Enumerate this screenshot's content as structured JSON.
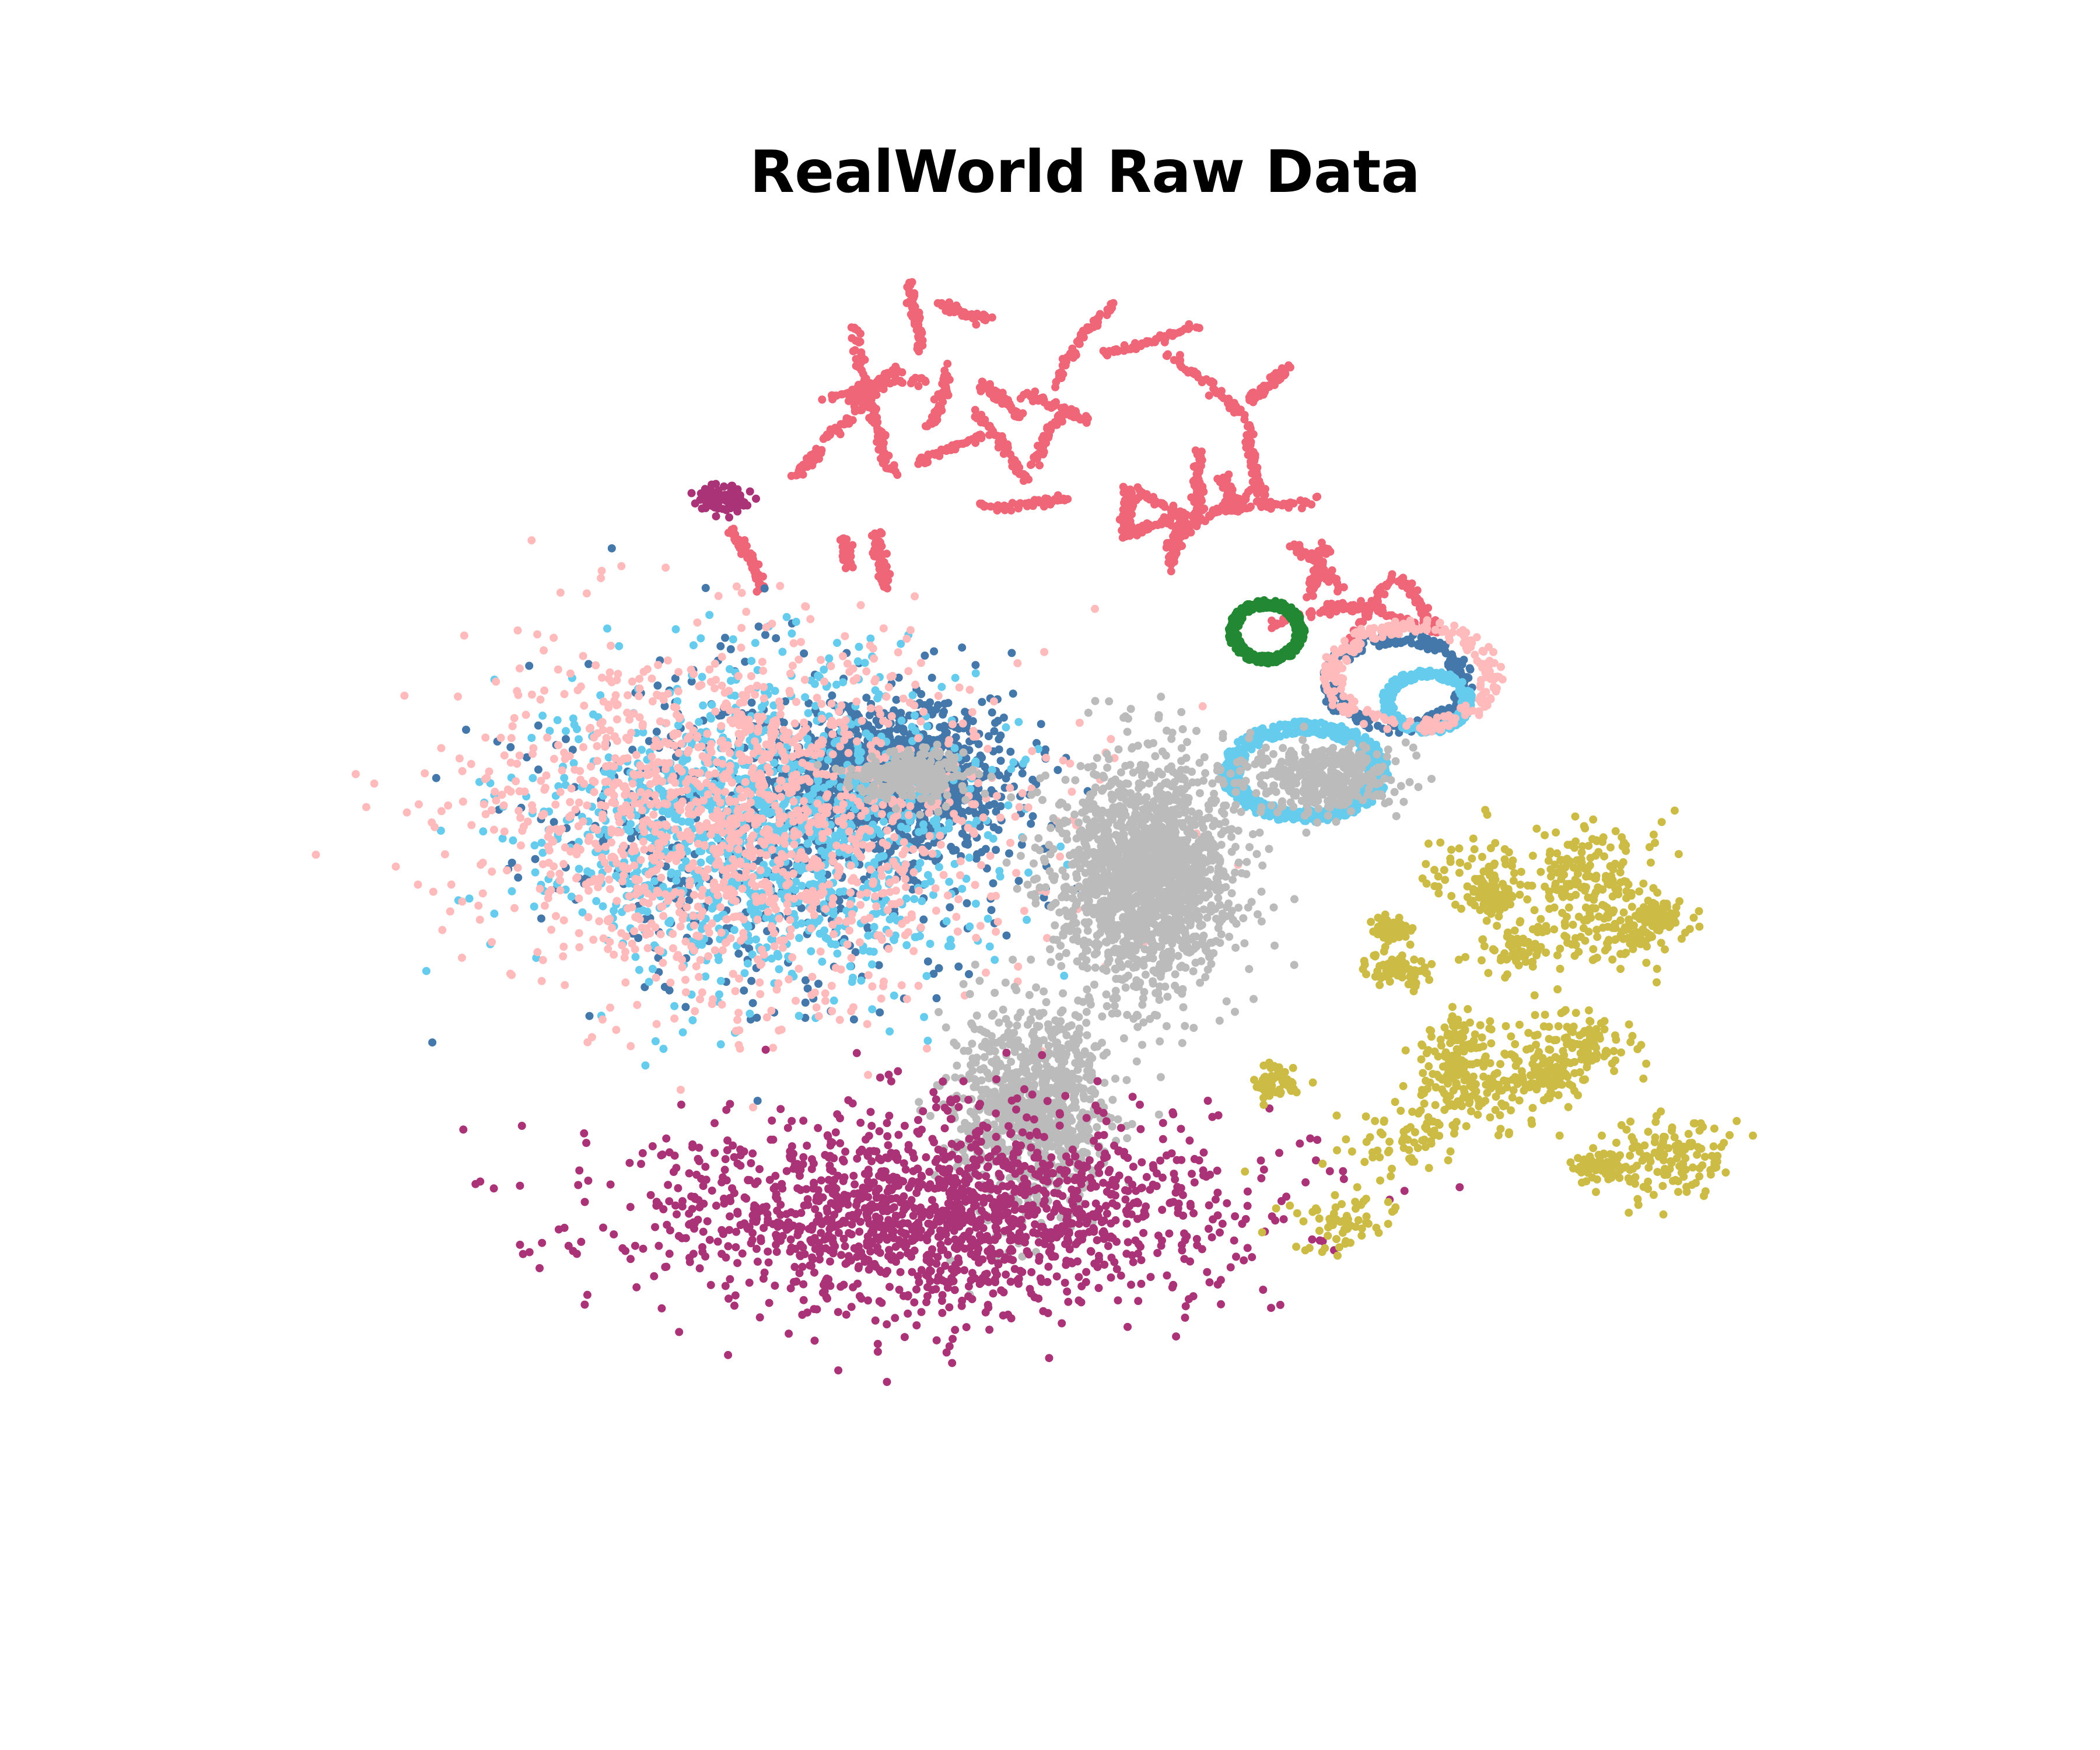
{
  "chart_data": {
    "type": "scatter",
    "title": "RealWorld Raw Data",
    "xlabel": "",
    "ylabel": "",
    "axes_visible": false,
    "grid": false,
    "legend": "none",
    "xlim": [
      -100,
      100
    ],
    "ylim": [
      -100,
      100
    ],
    "series": [
      {
        "color": "#ee6677",
        "clusters": [
          {
            "center": [
              -10,
              72
            ],
            "spread": [
              36,
              20
            ],
            "shape": "arcs",
            "count": 1400
          },
          {
            "center": [
              36,
              48
            ],
            "spread": [
              8,
              7
            ],
            "shape": "arcs",
            "count": 260
          }
        ]
      },
      {
        "color": "#4477aa",
        "clusters": [
          {
            "center": [
              -26,
              18
            ],
            "spread": [
              14,
              10
            ],
            "shape": "blob",
            "count": 1300
          },
          {
            "center": [
              -40,
              10
            ],
            "spread": [
              30,
              26
            ],
            "shape": "blob",
            "count": 700
          },
          {
            "center": [
              40,
              33
            ],
            "spread": [
              10,
              8
            ],
            "shape": "ring",
            "count": 250
          }
        ]
      },
      {
        "color": "#66ccee",
        "clusters": [
          {
            "center": [
              -42,
              10
            ],
            "spread": [
              28,
              24
            ],
            "shape": "blob",
            "count": 1300
          },
          {
            "center": [
              28,
              19
            ],
            "spread": [
              11,
              8
            ],
            "shape": "ring",
            "count": 500
          },
          {
            "center": [
              44,
              30
            ],
            "spread": [
              6,
              5
            ],
            "shape": "ring",
            "count": 250
          }
        ]
      },
      {
        "color": "#ffbbbb",
        "clusters": [
          {
            "center": [
              -45,
              12
            ],
            "spread": [
              34,
              28
            ],
            "shape": "blob",
            "count": 1500
          },
          {
            "center": [
              42,
              34
            ],
            "spread": [
              12,
              9
            ],
            "shape": "ring",
            "count": 250
          }
        ]
      },
      {
        "color": "#228833",
        "clusters": [
          {
            "center": [
              23,
              41
            ],
            "spread": [
              5,
              5
            ],
            "shape": "ring",
            "count": 420
          }
        ]
      },
      {
        "color": "#bbbbbb",
        "clusters": [
          {
            "center": [
              7,
              3
            ],
            "spread": [
              12,
              18
            ],
            "shape": "blob",
            "count": 1700
          },
          {
            "center": [
              -8,
              -34
            ],
            "spread": [
              10,
              16
            ],
            "shape": "blob",
            "count": 900
          },
          {
            "center": [
              30,
              18
            ],
            "spread": [
              11,
              5
            ],
            "shape": "blob",
            "count": 350
          },
          {
            "center": [
              -24,
              18
            ],
            "spread": [
              8,
              4
            ],
            "shape": "blob",
            "count": 250
          }
        ]
      },
      {
        "color": "#aa3377",
        "clusters": [
          {
            "center": [
              -20,
              -50
            ],
            "spread": [
              40,
              16
            ],
            "shape": "blob",
            "count": 1600
          },
          {
            "center": [
              -48,
              62
            ],
            "spread": [
              4,
              2
            ],
            "shape": "blob",
            "count": 80
          }
        ]
      },
      {
        "color": "#ccbb44",
        "clusters": [
          {
            "center": [
              50,
              -22
            ],
            "spread": [
              30,
              32
            ],
            "shape": "blobs",
            "count": 1500
          }
        ]
      }
    ]
  }
}
